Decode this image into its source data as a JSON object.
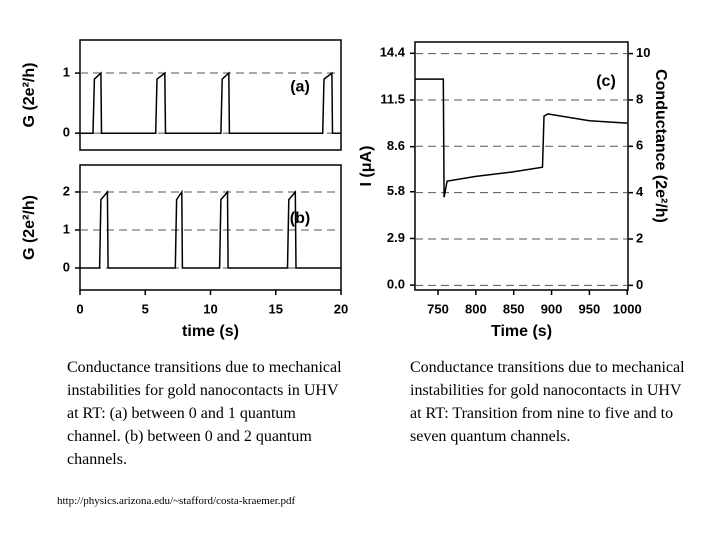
{
  "chart_data": [
    {
      "type": "line",
      "panel_label": "(a)",
      "y_label": "G (2e²/h)",
      "xlim": [
        0,
        20
      ],
      "ylim": [
        -0.28,
        1.55
      ],
      "yticks": [
        0,
        1
      ],
      "grid": true,
      "color": "#000000",
      "x": [
        0,
        1.0,
        1.1,
        1.6,
        1.65,
        5.8,
        5.9,
        6.5,
        6.55,
        10.8,
        10.9,
        11.4,
        11.45,
        18.6,
        18.7,
        19.3,
        19.35,
        20
      ],
      "values": [
        0,
        0,
        0.9,
        1,
        0,
        0,
        0.9,
        1,
        0,
        0,
        0.9,
        1,
        0,
        0,
        0.9,
        1,
        0,
        0
      ]
    },
    {
      "type": "line",
      "panel_label": "(b)",
      "y_label": "G (2e²/h)",
      "x_label": "time (s)",
      "xlim": [
        0,
        20
      ],
      "xticks": [
        0,
        5,
        10,
        15,
        20
      ],
      "ylim": [
        -0.58,
        2.71
      ],
      "yticks": [
        0,
        1,
        2
      ],
      "grid": true,
      "color": "#000000",
      "x": [
        0,
        1.5,
        1.6,
        2.1,
        2.15,
        7.3,
        7.4,
        7.8,
        7.85,
        10.7,
        10.8,
        11.3,
        11.35,
        15.9,
        16.0,
        16.5,
        16.55,
        20
      ],
      "values": [
        0,
        0,
        1.8,
        2,
        0,
        0,
        1.8,
        2,
        0,
        0,
        1.8,
        2,
        0,
        0,
        1.8,
        2,
        0,
        0
      ]
    },
    {
      "type": "line",
      "panel_label": "(c)",
      "y_label": "I (μA)",
      "y2_label": "Conductance (2e²/h)",
      "x_label": "Time (s)",
      "xlim": [
        719.6,
        1001
      ],
      "xticks": [
        750,
        800,
        850,
        900,
        950,
        1000
      ],
      "ylim": [
        -0.3,
        15.1
      ],
      "yticks": [
        {
          "value": 0,
          "label": "0.0"
        },
        2.9,
        5.8,
        8.6,
        11.5,
        14.4
      ],
      "y2lim": [
        -0.2,
        10.5
      ],
      "y2ticks": [
        0,
        2,
        4,
        6,
        8,
        10
      ],
      "grid": true,
      "series": [
        {
          "color": "#000000",
          "axis": "y2",
          "x": [
            720,
            757,
            758,
            762,
            800,
            850,
            888,
            890,
            895,
            950,
            1000
          ],
          "values": [
            8.9,
            8.9,
            3.8,
            4.5,
            4.7,
            4.9,
            5.1,
            7.3,
            7.4,
            7.1,
            7.0
          ]
        }
      ]
    }
  ],
  "captions": [
    "Conductance transitions due to mechanical instabilities for gold nanocontacts in UHV at RT: (a) between 0 and 1 quantum channel. (b) between 0 and 2 quantum channels.",
    "Conductance transitions due to mechanical instabilities for gold nanocontacts in UHV at RT: Transition from nine to five and to seven quantum channels."
  ],
  "source_url": "http://physics.arizona.edu/~stafford/costa-kraemer.pdf"
}
